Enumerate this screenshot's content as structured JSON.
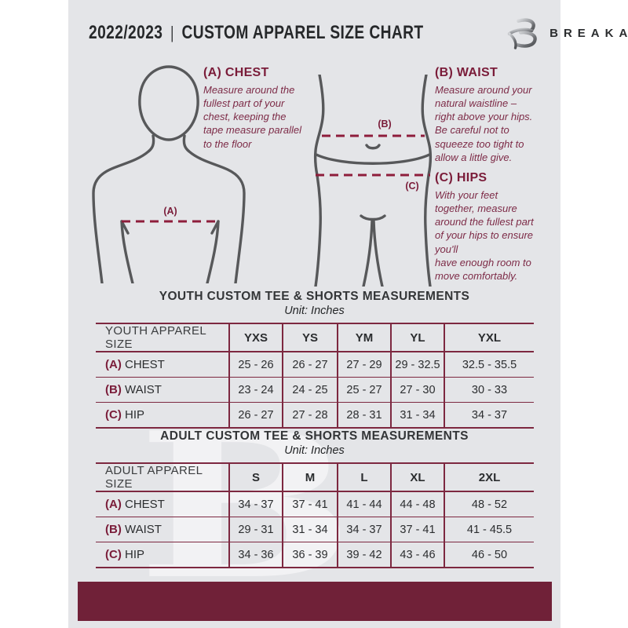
{
  "colors": {
    "maroon": "#7a1c39",
    "dash": "#8e1d3b",
    "table_border": "#7d2840",
    "footer_bar": "#702138",
    "card_background": "#e4e5e8",
    "text": "#2b2d2f",
    "figure_outline": "#57585a",
    "description": "#7d2b47"
  },
  "header": {
    "year": "2022/2023",
    "separator": "|",
    "title": "CUSTOM APPAREL SIZE CHART",
    "brand": "BREAKAWAY"
  },
  "instructions": {
    "chest": {
      "heading": "(A) CHEST",
      "body": "Measure around the\nfullest part of your\nchest, keeping the\ntape measure parallel\nto the floor"
    },
    "waist": {
      "heading": "(B) WAIST",
      "body": "Measure around your\nnatural waistline –\nright above your hips.\nBe careful not to\nsqueeze too tight to\nallow a little give."
    },
    "hips": {
      "heading": "(C) HIPS",
      "body": "With your feet\ntogether, measure\naround the fullest part\nof your hips to ensure\nyou'll\nhave enough room to\nmove comfortably."
    }
  },
  "figure_labels": {
    "chest": "(A)",
    "waist": "(B)",
    "hips": "(C)"
  },
  "watermark_letter": "B",
  "youth_table": {
    "title": "YOUTH CUSTOM TEE & SHORTS MEASUREMENTS",
    "unit": "Unit: Inches",
    "header": [
      "YOUTH APPAREL SIZE",
      "YXS",
      "YS",
      "YM",
      "YL",
      "YXL"
    ],
    "rows": [
      {
        "prefix": "(A)",
        "label": "CHEST",
        "values": [
          "25 - 26",
          "26 - 27",
          "27 - 29",
          "29 - 32.5",
          "32.5 - 35.5"
        ]
      },
      {
        "prefix": "(B)",
        "label": "WAIST",
        "values": [
          "23 - 24",
          "24 - 25",
          "25 - 27",
          "27 - 30",
          "30 - 33"
        ]
      },
      {
        "prefix": "(C)",
        "label": "HIP",
        "values": [
          "26 - 27",
          "27 - 28",
          "28 - 31",
          "31 - 34",
          "34 - 37"
        ]
      }
    ]
  },
  "adult_table": {
    "title": "ADULT CUSTOM TEE & SHORTS MEASUREMENTS",
    "unit": "Unit: Inches",
    "header": [
      "ADULT APPAREL SIZE",
      "S",
      "M",
      "L",
      "XL",
      "2XL"
    ],
    "rows": [
      {
        "prefix": "(A)",
        "label": "CHEST",
        "values": [
          "34 - 37",
          "37 - 41",
          "41 - 44",
          "44 - 48",
          "48 - 52"
        ]
      },
      {
        "prefix": "(B)",
        "label": "WAIST",
        "values": [
          "29 - 31",
          "31 - 34",
          "34 - 37",
          "37 - 41",
          "41 - 45.5"
        ]
      },
      {
        "prefix": "(C)",
        "label": "HIP",
        "values": [
          "34 - 36",
          "36 - 39",
          "39 - 42",
          "43 - 46",
          "46 - 50"
        ]
      }
    ]
  }
}
